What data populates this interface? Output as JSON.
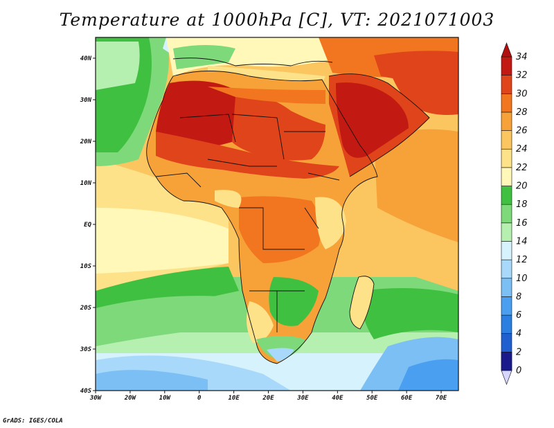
{
  "title": "Temperature at 1000hPa [C], VT: 2021071003",
  "credit": "GrADS: IGES/COLA",
  "map": {
    "region": "Africa",
    "lon_range": [
      -30,
      75
    ],
    "lat_range": [
      -40,
      45
    ],
    "lon_ticks": [
      "30W",
      "20W",
      "10W",
      "0",
      "10E",
      "20E",
      "30E",
      "40E",
      "50E",
      "60E",
      "70E"
    ],
    "lat_ticks": [
      "40N",
      "30N",
      "20N",
      "10N",
      "EQ",
      "10S",
      "20S",
      "30S",
      "40S"
    ]
  },
  "colorbar": {
    "levels": [
      0,
      2,
      4,
      6,
      8,
      10,
      12,
      14,
      16,
      18,
      20,
      22,
      24,
      26,
      28,
      30,
      32,
      34
    ],
    "labels": [
      "0",
      "2",
      "4",
      "6",
      "8",
      "10",
      "12",
      "14",
      "16",
      "18",
      "20",
      "22",
      "24",
      "26",
      "28",
      "30",
      "32",
      "34"
    ],
    "colors": [
      "#1a1a8c",
      "#1d3fb8",
      "#1f5fd0",
      "#2a7fe0",
      "#4a9ff0",
      "#7cbff5",
      "#a9d9fa",
      "#d6f2fc",
      "#b6f0b0",
      "#7ed97a",
      "#40c040",
      "#fff8b8",
      "#fde28a",
      "#fbc560",
      "#f7a238",
      "#f2761f",
      "#e0441a",
      "#c21a12"
    ],
    "under_color": "#d6d6ff",
    "over_color": "#b01010"
  }
}
